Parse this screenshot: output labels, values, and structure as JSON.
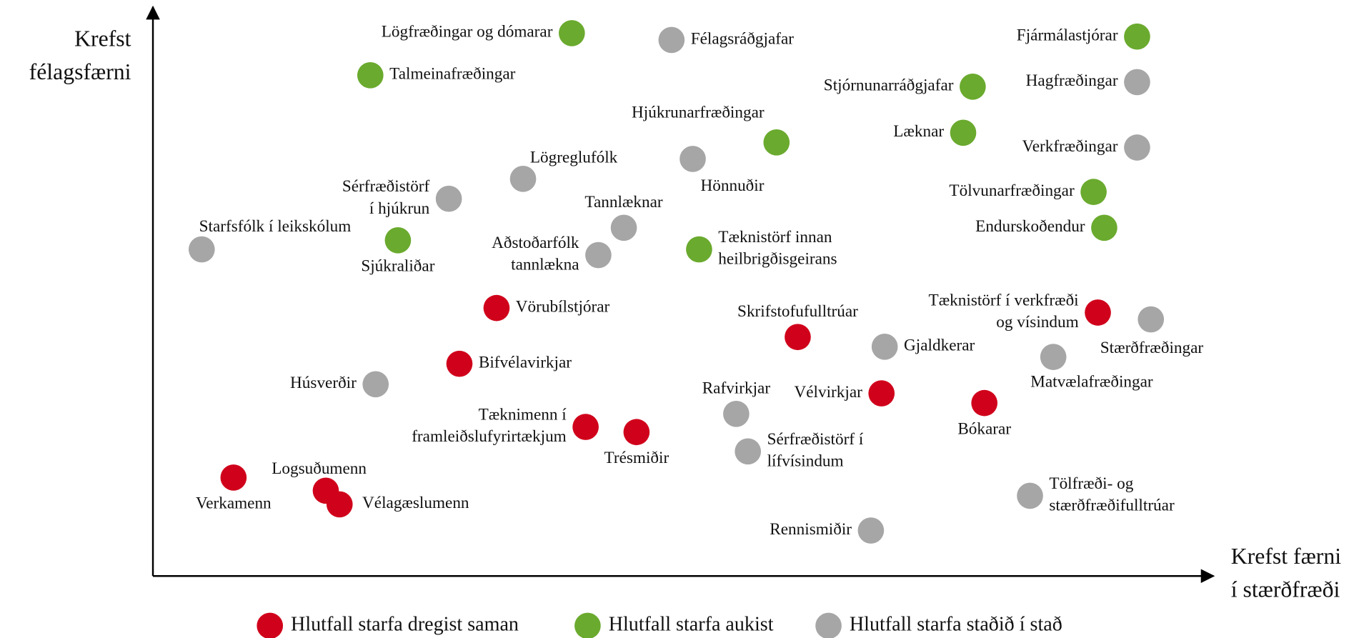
{
  "chart_data": {
    "type": "scatter",
    "xlabel": [
      "Krefst færni",
      "í stærðfræði"
    ],
    "ylabel": [
      "Krefst",
      "félagsfærni"
    ],
    "xlim": [
      0,
      100
    ],
    "ylim": [
      0,
      100
    ],
    "series": [
      {
        "name": "Hlutfall starfa dregist saman",
        "color": "#d0021b",
        "x": [
          32.4,
          28.9,
          40.8,
          45.6,
          7.6,
          16.3,
          17.6,
          60.8,
          68.7,
          78.4,
          89.1
        ],
        "y": [
          47.1,
          37.3,
          26.2,
          25.3,
          17.3,
          15.0,
          12.6,
          42.0,
          32.1,
          30.4,
          46.3
        ],
        "labels": [
          [
            "Vörubílstjórar"
          ],
          [
            "Bifvélavirkjar"
          ],
          [
            "Tæknimenn í",
            "framleiðslufyrirtækjum"
          ],
          [
            "Trésmiðir"
          ],
          [
            "Verkamenn"
          ],
          [
            "Logsuðumenn"
          ],
          [
            "Vélagæslumenn"
          ],
          [
            "Skrifstofufulltrúar"
          ],
          [
            "Vélvirkjar"
          ],
          [
            "Bókarar"
          ],
          [
            "Tæknistörf í verkfræði",
            "og vísindum"
          ]
        ]
      },
      {
        "name": "Hlutfall starfa aukist",
        "color": "#6aaa2e",
        "x": [
          39.5,
          20.5,
          58.8,
          23.1,
          51.5,
          92.8,
          77.3,
          76.4,
          88.7,
          89.7
        ],
        "y": [
          95.4,
          88.0,
          76.2,
          59.0,
          57.4,
          94.8,
          86.0,
          77.9,
          67.5,
          61.2
        ],
        "labels": [
          [
            "Lögfræðingar og dómarar"
          ],
          [
            "Talmeinafræðingar"
          ],
          [
            "Hjúkrunarfræðingar"
          ],
          [
            "Sjúkraliðar"
          ],
          [
            "Tæknistörf innan",
            "heilbrigðisgeirans"
          ],
          [
            "Fjármálastjórar"
          ],
          [
            "Stjórnunarráðgjafar"
          ],
          [
            "Læknar"
          ],
          [
            "Tölvunarfræðingar"
          ],
          [
            "Endurskoðendur"
          ]
        ]
      },
      {
        "name": "Hlutfall starfa staðið í stað",
        "color": "#a6a6a6",
        "x": [
          48.9,
          92.8,
          92.8,
          34.9,
          50.9,
          27.9,
          44.4,
          42.0,
          4.6,
          21.0,
          69.0,
          94.1,
          84.9,
          55.0,
          56.1,
          82.7,
          67.7
        ],
        "y": [
          94.2,
          86.8,
          75.3,
          69.8,
          73.3,
          66.3,
          61.2,
          56.4,
          57.4,
          33.7,
          40.3,
          45.1,
          38.5,
          28.5,
          21.9,
          14.1,
          8.0
        ],
        "labels": [
          [
            "Félagsráðgjafar"
          ],
          [
            "Hagfræðingar"
          ],
          [
            "Verkfræðingar"
          ],
          [
            "Lögreglufólk"
          ],
          [
            "Hönnuðir"
          ],
          [
            "Sérfræðistörf",
            "í hjúkrun"
          ],
          [
            "Tannlæknar"
          ],
          [
            "Aðstoðarfólk",
            "tannlækna"
          ],
          [
            "Starfsfólk í leikskólum"
          ],
          [
            "Húsverðir"
          ],
          [
            "Gjaldkerar"
          ],
          [
            "Stærðfræðingar"
          ],
          [
            "Matvælafræðingar"
          ],
          [
            "Rafvirkjar"
          ],
          [
            "Sérfræðistörf í",
            "lífvísindum"
          ],
          [
            "Tölfræði- og",
            "stærðfræðifulltrúar"
          ],
          [
            "Rennismiðir"
          ]
        ]
      }
    ]
  }
}
